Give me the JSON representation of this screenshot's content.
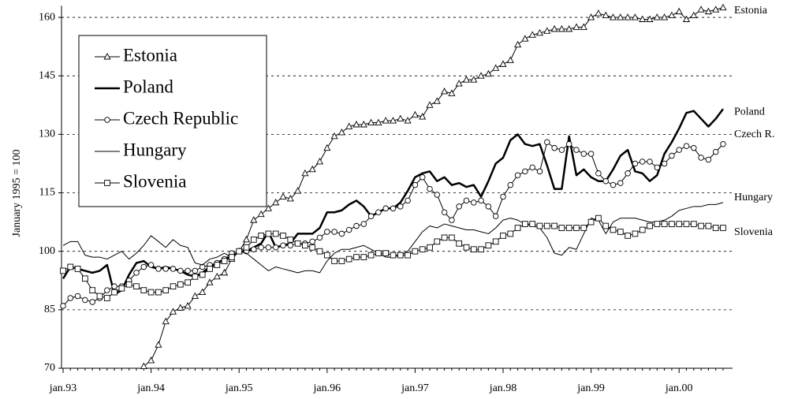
{
  "chart_data": {
    "type": "line",
    "y_label": "January 1995 = 100",
    "categories": [
      "jan.93",
      null,
      null,
      null,
      null,
      null,
      null,
      null,
      null,
      null,
      null,
      null,
      "jan.94",
      null,
      null,
      null,
      null,
      null,
      null,
      null,
      null,
      null,
      null,
      null,
      "jan.95",
      null,
      null,
      null,
      null,
      null,
      null,
      null,
      null,
      null,
      null,
      null,
      "jan.96",
      null,
      null,
      null,
      null,
      null,
      null,
      null,
      null,
      null,
      null,
      null,
      "jan.97",
      null,
      null,
      null,
      null,
      null,
      null,
      null,
      null,
      null,
      null,
      null,
      "jan.98",
      null,
      null,
      null,
      null,
      null,
      null,
      null,
      null,
      null,
      null,
      null,
      "jan.99",
      null,
      null,
      null,
      null,
      null,
      null,
      null,
      null,
      null,
      null,
      null,
      "jan.00",
      null,
      null,
      null,
      null,
      null,
      null
    ],
    "ylim": [
      70,
      163
    ],
    "yticks": [
      70,
      85,
      100,
      115,
      130,
      145,
      160
    ],
    "grid": true,
    "legend": "upper left",
    "series": [
      {
        "name": "Estonia",
        "label": "Estonia",
        "color": "#000000",
        "marker": "triangle",
        "width": 1,
        "values": [
          null,
          null,
          null,
          null,
          null,
          null,
          null,
          null,
          null,
          null,
          null,
          70.5,
          72,
          76,
          82,
          84.5,
          85.5,
          86,
          88.5,
          89.5,
          92,
          93.5,
          94.5,
          98,
          100,
          103,
          108,
          109.5,
          111,
          112.5,
          114,
          113.5,
          115.5,
          120,
          121,
          123,
          126.5,
          129.5,
          130.5,
          132,
          132.5,
          132.5,
          133,
          133,
          133.5,
          133.5,
          134,
          133.5,
          135,
          134.5,
          137.5,
          138.5,
          141,
          140.5,
          143,
          144,
          144,
          145,
          145.5,
          147,
          148,
          149,
          153,
          154.5,
          155.5,
          156,
          156.5,
          157,
          157,
          157,
          157.5,
          157.5,
          160,
          161,
          160.5,
          160,
          160,
          160,
          160,
          159.5,
          159.5,
          160,
          160,
          160.5,
          161.5,
          159.5,
          160.5,
          162,
          161.5,
          162,
          162.5
        ]
      },
      {
        "name": "Poland",
        "label": "Poland",
        "color": "#000000",
        "marker": null,
        "width": 2.5,
        "values": [
          93,
          96,
          95.5,
          95,
          94.5,
          95,
          96.5,
          89,
          90,
          94,
          97,
          97.5,
          96,
          95.5,
          96,
          95.5,
          95,
          94,
          93.5,
          94.5,
          96,
          97,
          98,
          98.5,
          100,
          100,
          101,
          102,
          105,
          101,
          101.5,
          102,
          104.5,
          104.5,
          104.5,
          106,
          110,
          110,
          110.5,
          112,
          113,
          111.5,
          109,
          110,
          111,
          111,
          112.5,
          115.5,
          119,
          120,
          120.5,
          118,
          119,
          117,
          117.5,
          116.5,
          117,
          114,
          118,
          122.5,
          124,
          128.5,
          130,
          127.5,
          127,
          127.5,
          122,
          116,
          116,
          129.5,
          119.5,
          121,
          119,
          118,
          118,
          121,
          124.5,
          126,
          120.5,
          120,
          118,
          119.5,
          125,
          128,
          131.5,
          135.5,
          136,
          134,
          132,
          134,
          136.5
        ]
      },
      {
        "name": "Czech Republic",
        "label": "Czech R.",
        "color": "#000000",
        "marker": "circle",
        "width": 1,
        "values": [
          86,
          88,
          88.5,
          87.5,
          87,
          88,
          90,
          91,
          91,
          92.5,
          94.5,
          96,
          96.5,
          95.5,
          95.5,
          95.5,
          95,
          95,
          95,
          96,
          96.5,
          97,
          98,
          99.5,
          100,
          100,
          100.5,
          101,
          101,
          101,
          101.5,
          101.5,
          102,
          102,
          102.5,
          103.5,
          105,
          105,
          104.5,
          105.5,
          106.5,
          107,
          109,
          110,
          111,
          111,
          111.5,
          113,
          117,
          119,
          116,
          114.5,
          110,
          108,
          111.5,
          113,
          112.5,
          113,
          111.5,
          109,
          114,
          117,
          119.5,
          120.5,
          121.5,
          120.5,
          128,
          126.5,
          126,
          127.5,
          126,
          125,
          125,
          120,
          118,
          117,
          117.5,
          120,
          122.5,
          123,
          123,
          121.5,
          122.5,
          124.5,
          126,
          127,
          126.5,
          124,
          123.5,
          125.5,
          127.5
        ]
      },
      {
        "name": "Hungary",
        "label": "Hungary",
        "color": "#000000",
        "marker": null,
        "width": 1,
        "values": [
          101.5,
          102.5,
          102.5,
          99,
          98.5,
          98.5,
          98,
          99,
          100,
          98,
          99.5,
          101.5,
          104,
          102.5,
          101,
          103,
          101.5,
          101,
          97,
          96.5,
          98,
          98.5,
          99.5,
          98.5,
          100,
          99.5,
          98,
          96.5,
          95,
          96,
          95.5,
          95,
          94.5,
          95,
          95,
          94.5,
          97.5,
          99.5,
          100.5,
          100.5,
          101,
          101.5,
          100.5,
          99.5,
          98.5,
          98.5,
          99,
          100,
          102.5,
          105,
          106.5,
          106,
          107,
          106.5,
          106,
          105.5,
          105.5,
          105,
          104.5,
          106,
          108,
          108.5,
          108,
          107,
          106.5,
          106,
          103.5,
          99.5,
          99,
          101,
          100.5,
          104.5,
          108.5,
          108,
          104.5,
          107.5,
          108.5,
          108.5,
          108.5,
          108,
          107.5,
          107.5,
          108,
          109,
          110.5,
          111,
          111.5,
          111.5,
          112,
          112,
          112.5
        ]
      },
      {
        "name": "Slovenia",
        "label": "Slovenia",
        "color": "#000000",
        "marker": "square",
        "width": 1,
        "values": [
          95,
          96,
          95.5,
          93,
          90,
          88.5,
          88,
          89.5,
          90.5,
          91.5,
          91,
          90,
          89.5,
          89.5,
          90,
          91,
          91.5,
          92,
          93.5,
          94,
          95.5,
          96.5,
          97.5,
          98.5,
          100,
          101,
          103,
          104,
          104.5,
          104.5,
          104,
          103,
          102,
          101.5,
          101,
          100,
          99,
          97.5,
          97.5,
          98,
          98.5,
          98.5,
          99,
          99.5,
          99.5,
          99,
          99,
          99,
          100,
          100.5,
          101,
          102.5,
          103.5,
          103.5,
          102,
          101,
          100.5,
          100.5,
          101.5,
          102.5,
          104,
          104.5,
          106,
          107,
          107,
          106.5,
          106.5,
          106.5,
          106,
          106,
          106,
          106,
          107.5,
          108.5,
          106.5,
          105.5,
          105,
          104,
          104.5,
          105.5,
          106.5,
          107,
          107,
          107,
          107,
          107,
          107,
          106.5,
          106.5,
          106,
          106
        ]
      }
    ]
  }
}
